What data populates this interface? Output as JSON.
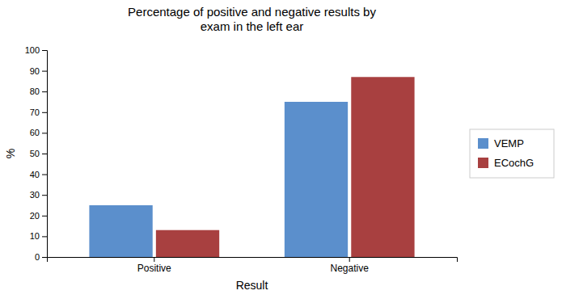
{
  "chart_data": {
    "type": "bar",
    "title": "Percentage of positive and negative results by\nexam in the left ear",
    "x_label": "Result",
    "y_label": "%",
    "categories": [
      "Positive",
      "Negative"
    ],
    "series": [
      {
        "name": "VEMP",
        "color": "#5b8fcc",
        "values": [
          25,
          75
        ]
      },
      {
        "name": "ECochG",
        "color": "#a84040",
        "values": [
          13,
          87
        ]
      }
    ],
    "ylim": [
      0,
      100
    ],
    "yticks": [
      0,
      10,
      20,
      30,
      40,
      50,
      60,
      70,
      80,
      90,
      100
    ],
    "grid": false,
    "legend": "right"
  }
}
